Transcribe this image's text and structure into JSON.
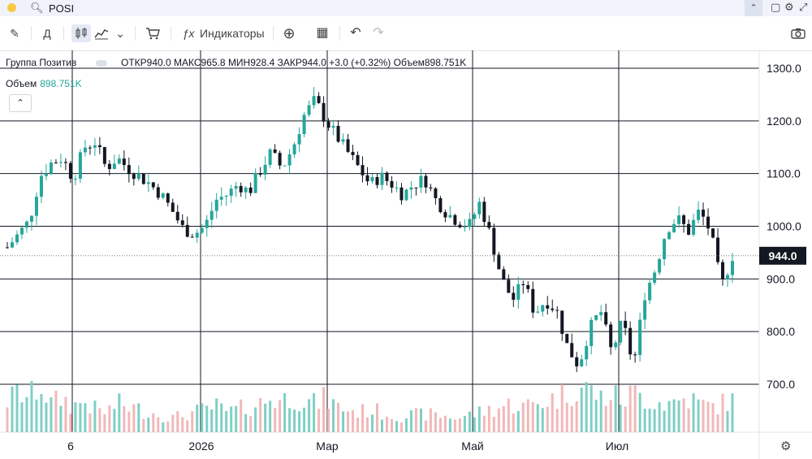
{
  "topbar": {
    "search_value": "POSI",
    "collapse_icon": "chevron-up-icon",
    "icons": [
      "square-icon",
      "gear-icon",
      "maximize-icon"
    ]
  },
  "toolbar": {
    "pencil": "✎",
    "interval": "Д",
    "chart_type_icons": [
      "candles-icon",
      "area-icon",
      "chevron-down-icon"
    ],
    "compare": "🛒",
    "indicators_label": "Индикаторы",
    "fx": "ƒx",
    "add": "⊕",
    "layouts": "▦",
    "undo": "↶",
    "redo": "↷",
    "camera": "📷"
  },
  "legend": {
    "name": "Группа Позитив",
    "open": "ОТКР940.0",
    "high": "МАКС965.8",
    "low": "МИН928.4",
    "close": "ЗАКР944.0",
    "change": "+3.0 (+0.32%)",
    "volume": "Объем898.751K"
  },
  "volume_legend": {
    "label": "Объем",
    "value": "898.751K"
  },
  "colors": {
    "up": "#26a69a",
    "down": "#131722",
    "vol_up": "#7fcfc5",
    "vol_down": "#f2b8b8",
    "grid": "#131722",
    "last_price_box": "#131722"
  },
  "chart_data": {
    "type": "candlestick",
    "y_ticks": [
      700,
      800,
      900,
      1000,
      1100,
      1200,
      1300
    ],
    "y_tick_labels": [
      "700.0",
      "800.0",
      "900.0",
      "1000.0",
      "1100.0",
      "1200.0",
      "1300.0"
    ],
    "ylim": [
      620,
      1330
    ],
    "x_labels": [
      "6",
      "2026",
      "Мар",
      "Май",
      "Июл"
    ],
    "last_price": 944.0,
    "last_price_label": "944.0",
    "close_path": [
      960,
      985,
      1010,
      1095,
      1120,
      1130,
      1090,
      1150,
      1160,
      1110,
      1130,
      1110,
      1095,
      1080,
      1060,
      1030,
      995,
      985,
      1000,
      1050,
      1060,
      1080,
      1065,
      1105,
      1140,
      1110,
      1150,
      1210,
      1240,
      1200,
      1170,
      1140,
      1110,
      1080,
      1095,
      1080,
      1060,
      1080,
      1090,
      1050,
      1025,
      1010,
      1000,
      1045,
      980,
      900,
      860,
      895,
      835,
      860,
      840,
      770,
      735,
      805,
      840,
      760,
      820,
      735,
      870,
      920,
      995,
      1015,
      990,
      1030,
      990,
      885,
      944
    ],
    "volume_path": [
      0.55,
      0.7,
      0.6,
      0.85,
      0.5,
      0.6,
      0.45,
      0.55,
      0.4,
      0.35,
      0.5,
      0.45,
      0.4,
      0.35,
      0.3,
      0.25,
      0.3,
      0.35,
      0.4,
      0.45,
      0.35,
      0.4,
      0.45,
      0.5,
      0.6,
      0.55,
      0.65,
      0.55,
      0.5,
      0.6,
      0.45,
      0.4,
      0.35,
      0.4,
      0.35,
      0.3,
      0.28,
      0.3,
      0.32,
      0.3,
      0.28,
      0.25,
      0.3,
      0.35,
      0.4,
      0.45,
      0.5,
      0.45,
      0.5,
      0.55,
      0.6,
      0.7,
      0.8,
      0.75,
      0.6,
      0.65,
      0.55,
      0.7,
      0.6,
      0.55,
      0.5,
      0.55,
      0.6,
      0.5,
      0.45,
      0.5,
      0.55
    ]
  }
}
